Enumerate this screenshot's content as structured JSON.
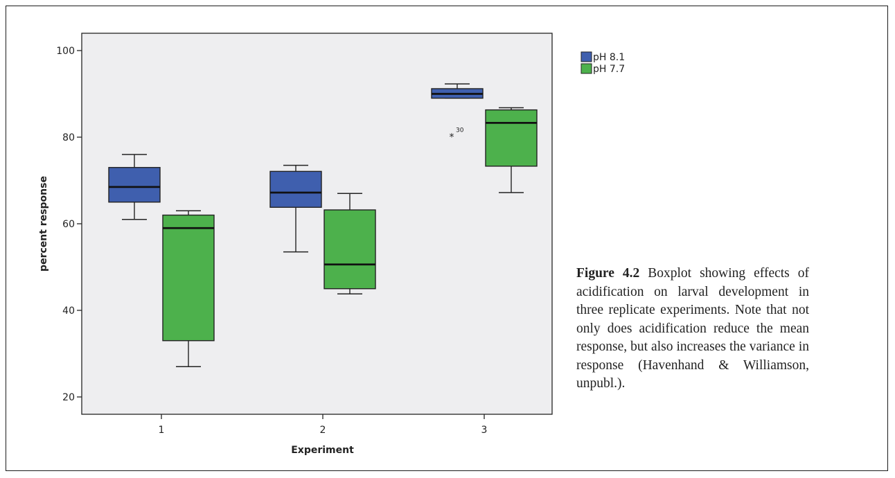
{
  "chart_data": {
    "type": "boxplot",
    "xlabel": "Experiment",
    "ylabel": "percent response",
    "categories": [
      "1",
      "2",
      "3"
    ],
    "ylim": [
      16,
      104
    ],
    "yticks": [
      20,
      40,
      60,
      80,
      100
    ],
    "grid": false,
    "legend_position": "top-right, outside plot",
    "plot_background": "#eeeef0",
    "series": [
      {
        "name": "pH 8.1",
        "color": "#3f5fae",
        "boxes": [
          {
            "whisker_low": 61,
            "q1": 65,
            "median": 68.5,
            "q3": 73,
            "whisker_high": 76
          },
          {
            "whisker_low": 53.5,
            "q1": 63.8,
            "median": 67.2,
            "q3": 72.1,
            "whisker_high": 73.5
          },
          {
            "whisker_low": 89,
            "q1": 89,
            "median": 90,
            "q3": 91.2,
            "whisker_high": 92.3
          }
        ]
      },
      {
        "name": "pH 7.7",
        "color": "#4db14c",
        "boxes": [
          {
            "whisker_low": 27,
            "q1": 33,
            "median": 59,
            "q3": 62,
            "whisker_high": 63
          },
          {
            "whisker_low": 43.8,
            "q1": 45,
            "median": 50.6,
            "q3": 63.2,
            "whisker_high": 67
          },
          {
            "whisker_low": 67.2,
            "q1": 73.3,
            "median": 83.3,
            "q3": 86.3,
            "whisker_high": 86.8
          }
        ]
      }
    ],
    "outliers": [
      {
        "category": "3",
        "series": "pH 8.1",
        "value": 80.6,
        "label": "30",
        "marker": "*"
      }
    ]
  },
  "caption": {
    "label": "Figure 4.2",
    "text": " Boxplot showing effects of acidification on larval development in three replicate experiments. Note that not only does acidification reduce the mean response, but also increases the variance in response (Havenhand & Williamson, unpubl.)."
  }
}
